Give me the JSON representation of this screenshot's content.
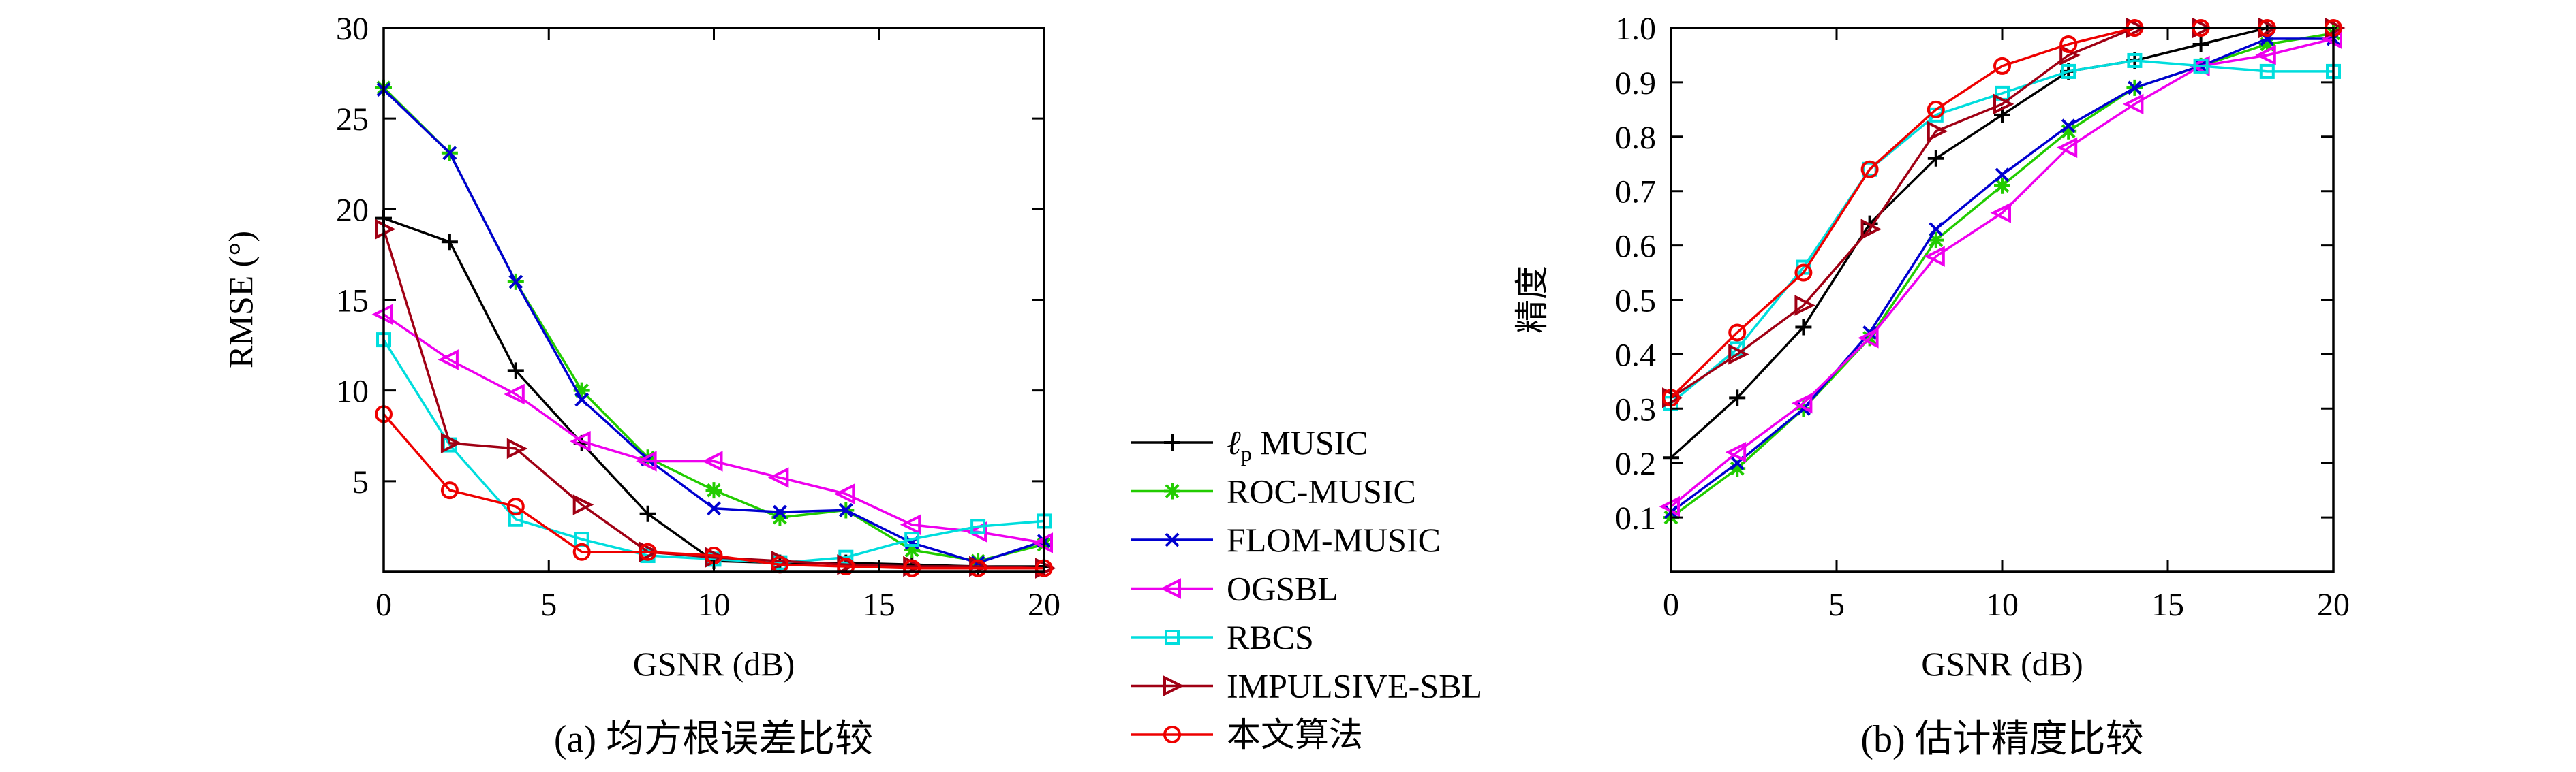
{
  "colors": {
    "lp_music": "#000000",
    "roc_music": "#22cc00",
    "flom_music": "#0000d0",
    "ogsbl": "#ee00ee",
    "rbcs": "#00dddd",
    "impulsive_sbl": "#a00014",
    "proposed": "#ee0000"
  },
  "legend": {
    "lp_music_symbol": "ℓ",
    "lp_music_subscript": "p",
    "lp_music_rest": " MUSIC",
    "roc_music": "ROC-MUSIC",
    "flom_music": "FLOM-MUSIC",
    "ogsbl": "OGSBL",
    "rbcs": "RBCS",
    "impulsive_sbl": "IMPULSIVE-SBL",
    "proposed": "本文算法"
  },
  "chart_data": [
    {
      "type": "line",
      "caption": "(a) 均方根误差比较",
      "xlabel": "GSNR (dB)",
      "ylabel": "RMSE (°)",
      "xlim": [
        0,
        20
      ],
      "ylim": [
        0,
        30
      ],
      "xticks": [
        "0",
        "5",
        "10",
        "15",
        "20"
      ],
      "yticks": [
        "5",
        "10",
        "15",
        "20",
        "25",
        "30"
      ],
      "grid": false,
      "x": [
        0,
        2,
        4,
        6,
        8,
        10,
        12,
        14,
        16,
        18,
        20
      ],
      "series": [
        {
          "key": "lp_music",
          "marker": "plus",
          "values": [
            19.5,
            18.2,
            11.1,
            7.1,
            3.2,
            0.6,
            0.5,
            0.5,
            0.4,
            0.3,
            0.3
          ]
        },
        {
          "key": "roc_music",
          "marker": "star",
          "values": [
            26.7,
            23.1,
            16.0,
            10.0,
            6.3,
            4.5,
            3.0,
            3.4,
            1.2,
            0.6,
            1.5
          ]
        },
        {
          "key": "flom_music",
          "marker": "x",
          "values": [
            26.6,
            23.1,
            16.0,
            9.5,
            6.2,
            3.5,
            3.3,
            3.4,
            1.6,
            0.5,
            1.7
          ]
        },
        {
          "key": "ogsbl",
          "marker": "triangle-left",
          "values": [
            14.2,
            11.7,
            9.8,
            7.2,
            6.1,
            6.1,
            5.2,
            4.3,
            2.6,
            2.2,
            1.6
          ]
        },
        {
          "key": "rbcs",
          "marker": "square",
          "values": [
            12.8,
            7.0,
            2.9,
            1.8,
            0.9,
            0.7,
            0.5,
            0.8,
            1.8,
            2.5,
            2.8
          ]
        },
        {
          "key": "impulsive_sbl",
          "marker": "triangle-right",
          "values": [
            18.9,
            7.1,
            6.8,
            3.7,
            1.1,
            0.8,
            0.6,
            0.4,
            0.3,
            0.3,
            0.2
          ]
        },
        {
          "key": "proposed",
          "marker": "circle",
          "values": [
            8.7,
            4.5,
            3.6,
            1.1,
            1.1,
            0.9,
            0.4,
            0.3,
            0.2,
            0.2,
            0.2
          ]
        }
      ]
    },
    {
      "type": "line",
      "caption": "(b) 估计精度比较",
      "xlabel": "GSNR (dB)",
      "ylabel": "精度",
      "xlim": [
        0,
        20
      ],
      "ylim": [
        0.0,
        1.0
      ],
      "xticks": [
        "0",
        "5",
        "10",
        "15",
        "20"
      ],
      "yticks": [
        "0.1",
        "0.2",
        "0.3",
        "0.4",
        "0.5",
        "0.6",
        "0.7",
        "0.8",
        "0.9",
        "1.0"
      ],
      "grid": false,
      "x": [
        0,
        2,
        4,
        6,
        8,
        10,
        12,
        14,
        16,
        18,
        20
      ],
      "series": [
        {
          "key": "lp_music",
          "marker": "plus",
          "values": [
            0.21,
            0.32,
            0.45,
            0.64,
            0.76,
            0.84,
            0.92,
            0.94,
            0.97,
            1.0,
            1.0
          ]
        },
        {
          "key": "roc_music",
          "marker": "star",
          "values": [
            0.1,
            0.19,
            0.3,
            0.43,
            0.61,
            0.71,
            0.81,
            0.89,
            0.93,
            0.97,
            0.99
          ]
        },
        {
          "key": "flom_music",
          "marker": "x",
          "values": [
            0.11,
            0.2,
            0.3,
            0.44,
            0.63,
            0.73,
            0.82,
            0.89,
            0.93,
            0.98,
            0.98
          ]
        },
        {
          "key": "ogsbl",
          "marker": "triangle-left",
          "values": [
            0.12,
            0.22,
            0.31,
            0.43,
            0.58,
            0.66,
            0.78,
            0.86,
            0.93,
            0.95,
            0.98
          ]
        },
        {
          "key": "rbcs",
          "marker": "square",
          "values": [
            0.31,
            0.41,
            0.56,
            0.74,
            0.84,
            0.88,
            0.92,
            0.94,
            0.93,
            0.92,
            0.92
          ]
        },
        {
          "key": "impulsive_sbl",
          "marker": "triangle-right",
          "values": [
            0.32,
            0.4,
            0.49,
            0.63,
            0.81,
            0.86,
            0.95,
            1.0,
            1.0,
            1.0,
            1.0
          ]
        },
        {
          "key": "proposed",
          "marker": "circle",
          "values": [
            0.32,
            0.44,
            0.55,
            0.74,
            0.85,
            0.93,
            0.97,
            1.0,
            1.0,
            1.0,
            1.0
          ]
        }
      ]
    }
  ]
}
